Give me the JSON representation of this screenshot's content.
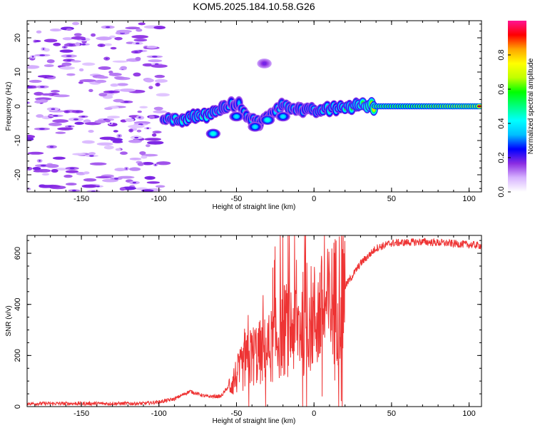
{
  "title": "KOM5.2025.184.10.58.G26",
  "chart_data": [
    {
      "type": "heatmap",
      "xlabel": "Height of straight line (km)",
      "ylabel": "Frequency (Hz)",
      "xlim": [
        -185,
        108
      ],
      "ylim": [
        -25,
        25
      ],
      "xticks": [
        -150,
        -100,
        -50,
        0,
        50,
        100
      ],
      "yticks": [
        -20,
        -10,
        0,
        10,
        20
      ],
      "colorbar": {
        "label": "Normalized spectral amplitude",
        "range": [
          0,
          1
        ],
        "ticks": [
          "0.0",
          "0.2",
          "0.4",
          "0.6",
          "0.8"
        ],
        "tick_values": [
          0.0,
          0.2,
          0.4,
          0.6,
          0.8
        ],
        "colors": [
          "#ffffff",
          "#d7b3ff",
          "#8a2be2",
          "#0000ff",
          "#00bfff",
          "#00ffff",
          "#00ff80",
          "#00ff00",
          "#c0ff00",
          "#ffff00",
          "#ffa500",
          "#ff0000",
          "#ff1493"
        ]
      },
      "features": {
        "noise_x_range": [
          -185,
          -97
        ],
        "noise_amplitude": 0.12,
        "trace": [
          {
            "x": -97,
            "y": -4,
            "amp": 0.3
          },
          {
            "x": -85,
            "y": -3.8,
            "amp": 0.4
          },
          {
            "x": -75,
            "y": -3,
            "amp": 0.45
          },
          {
            "x": -65,
            "y": -2,
            "amp": 0.4
          },
          {
            "x": -55,
            "y": 0,
            "amp": 0.3
          },
          {
            "x": -50,
            "y": 1,
            "amp": 0.25
          },
          {
            "x": -42,
            "y": -3,
            "amp": 0.3
          },
          {
            "x": -35,
            "y": -5,
            "amp": 0.3
          },
          {
            "x": -25,
            "y": -1,
            "amp": 0.3
          },
          {
            "x": -18,
            "y": 0.5,
            "amp": 0.35
          },
          {
            "x": -10,
            "y": -1,
            "amp": 0.3
          },
          {
            "x": 0,
            "y": -1.5,
            "amp": 0.35
          },
          {
            "x": 10,
            "y": -0.8,
            "amp": 0.4
          },
          {
            "x": 20,
            "y": -0.2,
            "amp": 0.45
          },
          {
            "x": 30,
            "y": 0.3,
            "amp": 0.5
          },
          {
            "x": 40,
            "y": 0,
            "amp": 0.75
          },
          {
            "x": 60,
            "y": 0,
            "amp": 0.85
          },
          {
            "x": 80,
            "y": 0,
            "amp": 0.9
          },
          {
            "x": 95,
            "y": 0,
            "amp": 0.95
          },
          {
            "x": 108,
            "y": 0,
            "amp": 0.97
          }
        ],
        "blobs": [
          {
            "x": -65,
            "y": -8,
            "amp": 0.35
          },
          {
            "x": -50,
            "y": -3,
            "amp": 0.3
          },
          {
            "x": -38,
            "y": -6,
            "amp": 0.3
          },
          {
            "x": -30,
            "y": -4,
            "amp": 0.35
          },
          {
            "x": -32,
            "y": 12.5,
            "amp": 0.1
          },
          {
            "x": -20,
            "y": -3,
            "amp": 0.3
          }
        ]
      }
    },
    {
      "type": "line",
      "xlabel": "Height of straight line (km)",
      "ylabel": "SNR (v/v)",
      "xlim": [
        -185,
        108
      ],
      "ylim": [
        0,
        670
      ],
      "xticks": [
        -150,
        -100,
        -50,
        0,
        50,
        100
      ],
      "yticks": [
        0,
        200,
        400,
        600
      ],
      "color": "#ee3333",
      "trend": [
        {
          "x": -185,
          "y": 12
        },
        {
          "x": -110,
          "y": 12
        },
        {
          "x": -100,
          "y": 18
        },
        {
          "x": -90,
          "y": 30
        },
        {
          "x": -80,
          "y": 60
        },
        {
          "x": -75,
          "y": 50
        },
        {
          "x": -70,
          "y": 40
        },
        {
          "x": -60,
          "y": 40
        },
        {
          "x": -50,
          "y": 120
        },
        {
          "x": -40,
          "y": 200
        },
        {
          "x": -30,
          "y": 220
        },
        {
          "x": -20,
          "y": 300
        },
        {
          "x": -10,
          "y": 320
        },
        {
          "x": 0,
          "y": 350
        },
        {
          "x": 10,
          "y": 390
        },
        {
          "x": 20,
          "y": 470
        },
        {
          "x": 30,
          "y": 560
        },
        {
          "x": 40,
          "y": 620
        },
        {
          "x": 50,
          "y": 640
        },
        {
          "x": 70,
          "y": 645
        },
        {
          "x": 90,
          "y": 638
        },
        {
          "x": 108,
          "y": 630
        }
      ]
    }
  ]
}
